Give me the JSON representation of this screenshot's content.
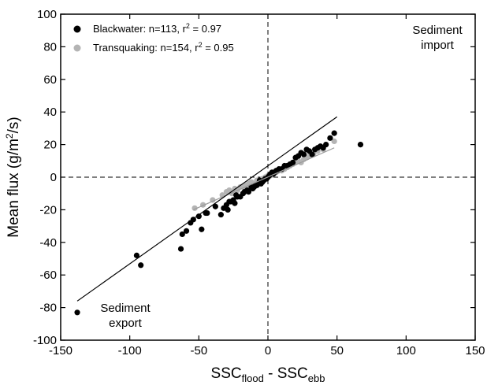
{
  "chart_data": {
    "type": "scatter",
    "title": "",
    "xlabel": {
      "main": "SSC",
      "sub1": "flood",
      "sep": " - SSC",
      "sub2": "ebb"
    },
    "ylabel": {
      "pre": "Mean flux (g/m",
      "sup": "2",
      "post": "/s)"
    },
    "xlim": [
      -150,
      150
    ],
    "ylim": [
      -100,
      100
    ],
    "xticks": [
      -150,
      -100,
      -50,
      0,
      50,
      100,
      150
    ],
    "yticks": [
      -100,
      -80,
      -60,
      -40,
      -20,
      0,
      20,
      40,
      60,
      80,
      100
    ],
    "grid": false,
    "legend_position": "top-left",
    "reference_lines": {
      "x": 0,
      "y": 0,
      "style": "dashed"
    },
    "annotations": {
      "import": [
        "Sediment",
        "import"
      ],
      "export": [
        "Sediment",
        "export"
      ]
    },
    "series": [
      {
        "name": "Blackwater",
        "legend": {
          "pre": "Blackwater:  n=113, r",
          "sup": "2",
          "post": " = 0.97"
        },
        "color": "#000000",
        "fit": [
          [
            -138,
            -76
          ],
          [
            50,
            37
          ]
        ],
        "points": [
          [
            -138,
            -83
          ],
          [
            -95,
            -48
          ],
          [
            -92,
            -54
          ],
          [
            -63,
            -44
          ],
          [
            -62,
            -35
          ],
          [
            -59,
            -33
          ],
          [
            -56,
            -28
          ],
          [
            -54,
            -26
          ],
          [
            -50,
            -24
          ],
          [
            -48,
            -32
          ],
          [
            -45,
            -22
          ],
          [
            -44,
            -22
          ],
          [
            -38,
            -18
          ],
          [
            -34,
            -23
          ],
          [
            -32,
            -19
          ],
          [
            -30,
            -17
          ],
          [
            -29,
            -20
          ],
          [
            -28,
            -15
          ],
          [
            -27,
            -15
          ],
          [
            -25,
            -14
          ],
          [
            -24,
            -16
          ],
          [
            -23,
            -11
          ],
          [
            -22,
            -12
          ],
          [
            -20,
            -12
          ],
          [
            -18,
            -10
          ],
          [
            -17,
            -9
          ],
          [
            -15,
            -8
          ],
          [
            -14,
            -9
          ],
          [
            -12,
            -6
          ],
          [
            -11,
            -7
          ],
          [
            -10,
            -6
          ],
          [
            -9,
            -5
          ],
          [
            -8,
            -5
          ],
          [
            -7,
            -4
          ],
          [
            -6,
            -2
          ],
          [
            -5,
            -4
          ],
          [
            -4,
            -3
          ],
          [
            -3,
            -2
          ],
          [
            -2,
            -1
          ],
          [
            -1,
            -1
          ],
          [
            0,
            0
          ],
          [
            1,
            1
          ],
          [
            2,
            2
          ],
          [
            3,
            3
          ],
          [
            4,
            2
          ],
          [
            5,
            3
          ],
          [
            6,
            4
          ],
          [
            7,
            4
          ],
          [
            8,
            5
          ],
          [
            10,
            5
          ],
          [
            12,
            7
          ],
          [
            14,
            7
          ],
          [
            16,
            8
          ],
          [
            18,
            9
          ],
          [
            20,
            12
          ],
          [
            22,
            13
          ],
          [
            24,
            15
          ],
          [
            26,
            14
          ],
          [
            28,
            17
          ],
          [
            30,
            16
          ],
          [
            32,
            14
          ],
          [
            34,
            17
          ],
          [
            36,
            18
          ],
          [
            38,
            19
          ],
          [
            40,
            18
          ],
          [
            42,
            20
          ],
          [
            45,
            24
          ],
          [
            48,
            27
          ],
          [
            67,
            20
          ]
        ]
      },
      {
        "name": "Transquaking",
        "legend": {
          "pre": "Transquaking: n=154, r",
          "sup": "2",
          "post": " = 0.95"
        },
        "color": "#b4b4b4",
        "fit": [
          [
            -54,
            -20
          ],
          [
            48,
            18
          ]
        ],
        "points": [
          [
            -53,
            -19
          ],
          [
            -47,
            -17
          ],
          [
            -40,
            -14
          ],
          [
            -33,
            -11
          ],
          [
            -30,
            -9
          ],
          [
            -28,
            -8
          ],
          [
            -26,
            -10
          ],
          [
            -24,
            -7
          ],
          [
            -22,
            -8
          ],
          [
            -20,
            -6
          ],
          [
            -18,
            -6
          ],
          [
            -16,
            -5
          ],
          [
            -14,
            -4
          ],
          [
            -12,
            -3
          ],
          [
            -10,
            -4
          ],
          [
            -8,
            -2
          ],
          [
            -6,
            -2
          ],
          [
            -4,
            -1
          ],
          [
            -2,
            0
          ],
          [
            0,
            1
          ],
          [
            2,
            1
          ],
          [
            4,
            2
          ],
          [
            6,
            3
          ],
          [
            8,
            4
          ],
          [
            10,
            4
          ],
          [
            12,
            5
          ],
          [
            14,
            6
          ],
          [
            16,
            7
          ],
          [
            18,
            8
          ],
          [
            20,
            9
          ],
          [
            22,
            10
          ],
          [
            24,
            9
          ],
          [
            26,
            11
          ],
          [
            28,
            12
          ],
          [
            30,
            13
          ],
          [
            33,
            14
          ],
          [
            36,
            16
          ],
          [
            40,
            17
          ],
          [
            48,
            22
          ]
        ]
      }
    ]
  }
}
